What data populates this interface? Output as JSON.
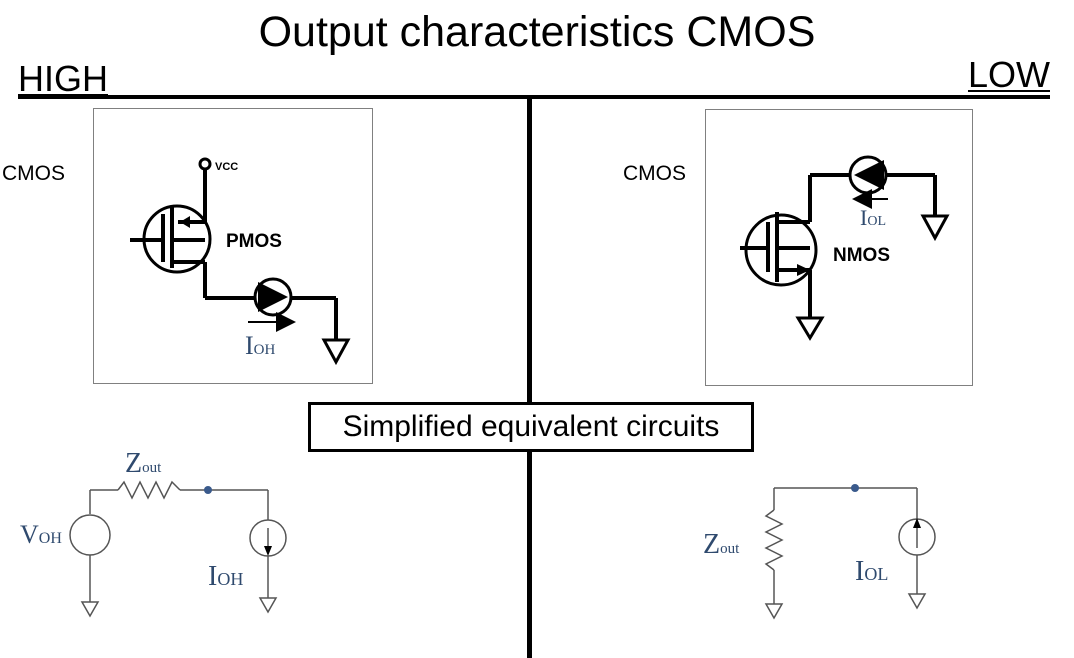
{
  "title": "Output characteristics CMOS",
  "high": {
    "heading": "HIGH",
    "side_label": "CMOS",
    "vcc_label": "VCC",
    "transistor_label": "PMOS",
    "current_main": "I",
    "current_sub": "OH"
  },
  "low": {
    "heading": "LOW",
    "side_label": "CMOS",
    "transistor_label": "NMOS",
    "current_main": "I",
    "current_sub": "OL"
  },
  "equivalent_label": "Simplified equivalent circuits",
  "eq_high": {
    "zout_main": "Z",
    "zout_sub": "out",
    "voh_main": "V",
    "voh_sub": "OH",
    "ioh_main": "I",
    "ioh_sub": "OH"
  },
  "eq_low": {
    "zout_main": "Z",
    "zout_sub": "out",
    "iol_main": "I",
    "iol_sub": "OL"
  },
  "colors": {
    "label_blue": "#2f4a6e",
    "node_blue": "#3a5a8c"
  }
}
